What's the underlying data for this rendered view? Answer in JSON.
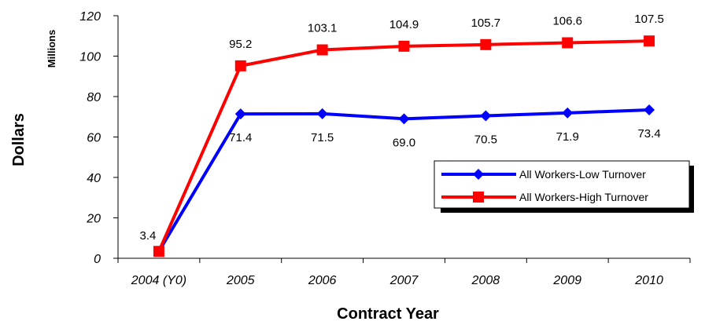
{
  "chart_data": {
    "type": "line",
    "title": "",
    "xlabel": "Contract Year",
    "ylabel": "Dollars",
    "yunits": "Millions",
    "categories": [
      "2004 (Y0)",
      "2005",
      "2006",
      "2007",
      "2008",
      "2009",
      "2010"
    ],
    "ylim": [
      0,
      120
    ],
    "yticks": [
      0,
      20,
      40,
      60,
      80,
      100,
      120
    ],
    "grid": false,
    "legend_position": "right",
    "series": [
      {
        "name": "All Workers-Low Turnover",
        "color": "#0000ff",
        "marker": "diamond",
        "values": [
          3.4,
          71.4,
          71.5,
          69.0,
          70.5,
          71.9,
          73.4
        ],
        "labels": [
          "",
          "71.4",
          "71.5",
          "69.0",
          "70.5",
          "71.9",
          "73.4"
        ]
      },
      {
        "name": "All Workers-High Turnover",
        "color": "#ff0000",
        "marker": "square",
        "values": [
          3.4,
          95.2,
          103.1,
          104.9,
          105.7,
          106.6,
          107.5
        ],
        "labels": [
          "3.4",
          "95.2",
          "103.1",
          "104.9",
          "105.7",
          "106.6",
          "107.5"
        ]
      }
    ]
  }
}
